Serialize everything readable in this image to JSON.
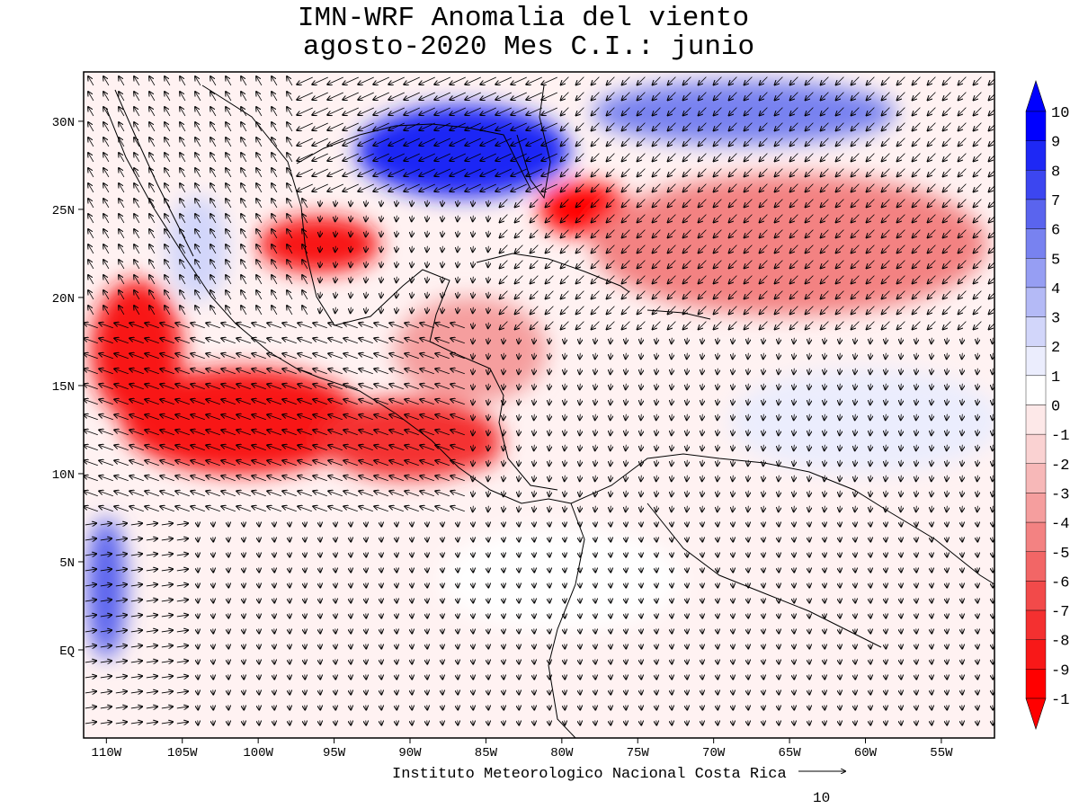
{
  "title": {
    "line1": "IMN-WRF Anomalia del viento",
    "line2": "agosto-2020 Mes C.I.: junio"
  },
  "credit": "Instituto Meteorologico Nacional Costa Rica",
  "reference_vector": {
    "label": "10",
    "magnitude": 10
  },
  "map": {
    "lon_range": [
      -111.5,
      -51.5
    ],
    "lat_range": [
      -5,
      32.8
    ],
    "lon_ticks": [
      {
        "value": -110,
        "label": "110W"
      },
      {
        "value": -105,
        "label": "105W"
      },
      {
        "value": -100,
        "label": "100W"
      },
      {
        "value": -95,
        "label": "95W"
      },
      {
        "value": -90,
        "label": "90W"
      },
      {
        "value": -85,
        "label": "85W"
      },
      {
        "value": -80,
        "label": "80W"
      },
      {
        "value": -75,
        "label": "75W"
      },
      {
        "value": -70,
        "label": "70W"
      },
      {
        "value": -65,
        "label": "65W"
      },
      {
        "value": -60,
        "label": "60W"
      },
      {
        "value": -55,
        "label": "55W"
      }
    ],
    "lat_ticks": [
      {
        "value": 30,
        "label": "30N"
      },
      {
        "value": 25,
        "label": "25N"
      },
      {
        "value": 20,
        "label": "20N"
      },
      {
        "value": 15,
        "label": "15N"
      },
      {
        "value": 10,
        "label": "10N"
      },
      {
        "value": 5,
        "label": "5N"
      },
      {
        "value": 0,
        "label": "EQ"
      }
    ],
    "anomaly_regions": [
      {
        "name": "gulf-of-mexico-positive",
        "lon": -86.5,
        "lat": 28.3,
        "rlon": 7,
        "rlat": 2.6,
        "value": 9
      },
      {
        "name": "atlantic-north-positive",
        "lon": -68,
        "lat": 30.5,
        "rlon": 10,
        "rlat": 1.8,
        "value": 6
      },
      {
        "name": "pacific-west-positive",
        "lon": -110,
        "lat": 3.5,
        "rlon": 1.3,
        "rlat": 4,
        "value": 7
      },
      {
        "name": "mexico-coast-positive",
        "lon": -104,
        "lat": 22.8,
        "rlon": 2,
        "rlat": 3,
        "value": 3
      },
      {
        "name": "caribbean-east-positive",
        "lon": -60,
        "lat": 13,
        "rlon": 9,
        "rlat": 3,
        "value": 2
      },
      {
        "name": "south-america-positive",
        "lon": -80,
        "lat": 4,
        "rlon": 8,
        "rlat": 3,
        "value": 1
      },
      {
        "name": "pacific-central-negative",
        "lon": -101,
        "lat": 13,
        "rlon": 8,
        "rlat": 3,
        "value": -8
      },
      {
        "name": "pacific-west-negative",
        "lon": -108,
        "lat": 17,
        "rlon": 3,
        "rlat": 4,
        "value": -8
      },
      {
        "name": "pacific-coast-negative",
        "lon": -90,
        "lat": 12,
        "rlon": 6,
        "rlat": 2.3,
        "value": -7
      },
      {
        "name": "bay-of-campeche-negative",
        "lon": -96,
        "lat": 23,
        "rlon": 4,
        "rlat": 1.6,
        "value": -8
      },
      {
        "name": "florida-straits-negative",
        "lon": -78.5,
        "lat": 25,
        "rlon": 3,
        "rlat": 1.5,
        "value": -9
      },
      {
        "name": "atlantic-band-negative",
        "lon": -65,
        "lat": 23,
        "rlon": 13,
        "rlat": 4,
        "value": -4
      },
      {
        "name": "caribbean-west-negative",
        "lon": -86,
        "lat": 17,
        "rlon": 5,
        "rlat": 3,
        "value": -3
      },
      {
        "name": "gulf-of-papagayo-negative",
        "lon": -86,
        "lat": 11.5,
        "rlon": 2,
        "rlat": 1.2,
        "value": -7
      }
    ]
  },
  "legend": {
    "levels": [
      10,
      9,
      8,
      7,
      6,
      5,
      4,
      3,
      2,
      1,
      0,
      -1,
      -2,
      -3,
      -4,
      -5,
      -6,
      -7,
      -8,
      -9,
      -1
    ],
    "labels": [
      "10",
      "9",
      "8",
      "7",
      "6",
      "5",
      "4",
      "3",
      "2",
      "1",
      "0",
      "-1",
      "-2",
      "-3",
      "-4",
      "-5",
      "-6",
      "-7",
      "-8",
      "-9",
      "-1"
    ],
    "colors": [
      "#0000ff",
      "#1e28f5",
      "#3c46f0",
      "#5a64ee",
      "#7882f0",
      "#969ef3",
      "#b4baf6",
      "#d2d6fa",
      "#ebedfd",
      "#ffffff",
      "#fde8e8",
      "#fad2d2",
      "#f7b8b8",
      "#f59e9e",
      "#f38282",
      "#f26666",
      "#f24a4a",
      "#f43030",
      "#f81818",
      "#ff0000"
    ],
    "top_arrow_color": "#0000ff",
    "bottom_arrow_color": "#ff0000"
  },
  "colors": {
    "positive_strong": "#0a14f5",
    "negative_strong": "#f01e1e",
    "background_field": "#fff0f0",
    "coastline": "#000000"
  }
}
